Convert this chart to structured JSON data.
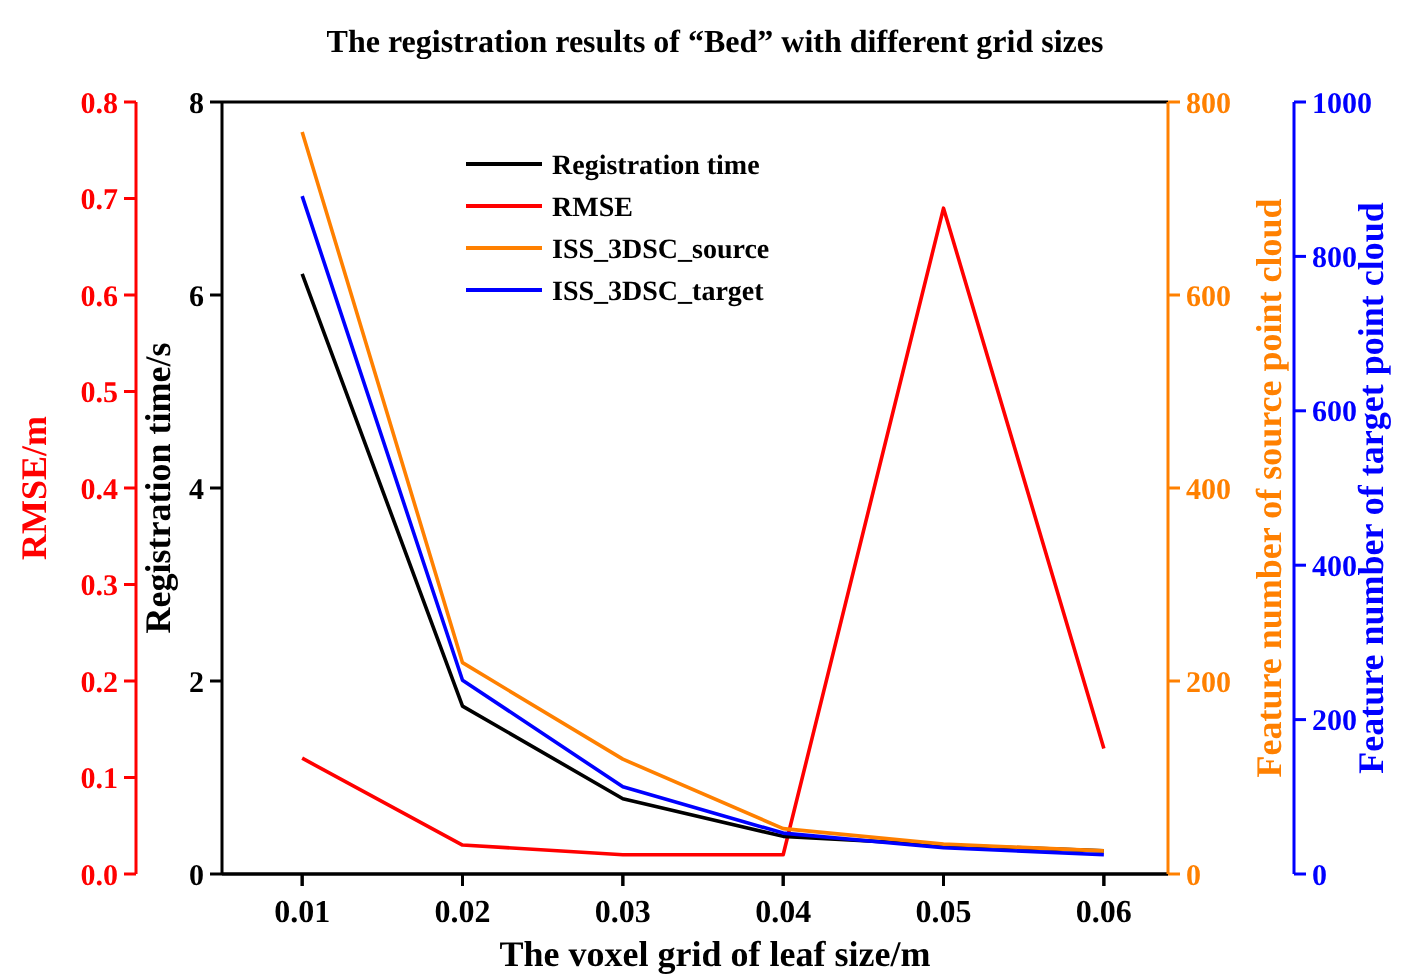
{
  "chart_data": [
    {
      "type": "line",
      "title": "The registration results of “Bed” with different grid sizes",
      "ylabel": "RMSE/m",
      "x": [
        0.01,
        0.02,
        0.03,
        0.04,
        0.05,
        0.06
      ],
      "xlim": [
        0.005,
        0.064
      ],
      "xticks": [
        0.01,
        0.02,
        0.03,
        0.04,
        0.05,
        0.06
      ],
      "ylim": [
        0,
        0.8
      ],
      "yticks": [
        {
          "value": 0,
          "label": "0.0"
        },
        {
          "value": 0.1,
          "label": "0.1"
        },
        {
          "value": 0.2,
          "label": "0.2"
        },
        {
          "value": 0.3,
          "label": "0.3"
        },
        {
          "value": 0.4,
          "label": "0.4"
        },
        {
          "value": 0.5,
          "label": "0.5"
        },
        {
          "value": 0.6,
          "label": "0.6"
        },
        {
          "value": 0.7,
          "label": "0.7"
        },
        {
          "value": 0.8,
          "label": "0.8"
        }
      ],
      "series": [
        {
          "name": "RMSE",
          "color": "#ff0000",
          "values": [
            0.12,
            0.03,
            0.02,
            0.02,
            0.69,
            0.13
          ]
        }
      ],
      "tick_labels": "y",
      "legend": "top",
      "grid": false,
      "marker": "none",
      "line_style": "solid"
    },
    {
      "type": "line",
      "xlabel": "The voxel grid of leaf size/m",
      "ylabel": "Registration time/s",
      "y2label": "Feature number of source point cloud",
      "y3label": "Feature number of target point cloud",
      "x": [
        0.01,
        0.02,
        0.03,
        0.04,
        0.05,
        0.06
      ],
      "xlim": [
        0.005,
        0.064
      ],
      "xticks": [
        {
          "value": 0.01,
          "label": "0.01"
        },
        {
          "value": 0.02,
          "label": "0.02"
        },
        {
          "value": 0.03,
          "label": "0.03"
        },
        {
          "value": 0.04,
          "label": "0.04"
        },
        {
          "value": 0.05,
          "label": "0.05"
        },
        {
          "value": 0.06,
          "label": "0.06"
        }
      ],
      "ylim": [
        0,
        8
      ],
      "yticks": [
        0,
        2,
        4,
        6,
        8
      ],
      "y2lim": [
        0,
        800
      ],
      "y2ticks": [
        0,
        200,
        400,
        600,
        800
      ],
      "y3lim": [
        0,
        1000
      ],
      "y3ticks": [
        0,
        200,
        400,
        600,
        800,
        1000
      ],
      "series": [
        {
          "name": "Registration time",
          "color": "#000000",
          "axis": "y",
          "values": [
            6.22,
            1.74,
            0.78,
            0.39,
            0.3,
            0.24
          ]
        },
        {
          "name": "ISS_3DSC_source",
          "color": "#ff8000",
          "axis": "y2",
          "values": [
            769,
            219,
            119,
            47,
            31,
            24
          ]
        },
        {
          "name": "ISS_3DSC_target",
          "color": "#0000ff",
          "axis": "y3",
          "values": [
            878,
            251,
            113,
            53,
            34,
            25
          ]
        }
      ],
      "legend": "top",
      "grid": false,
      "marker": "none",
      "line_style": "solid"
    }
  ]
}
